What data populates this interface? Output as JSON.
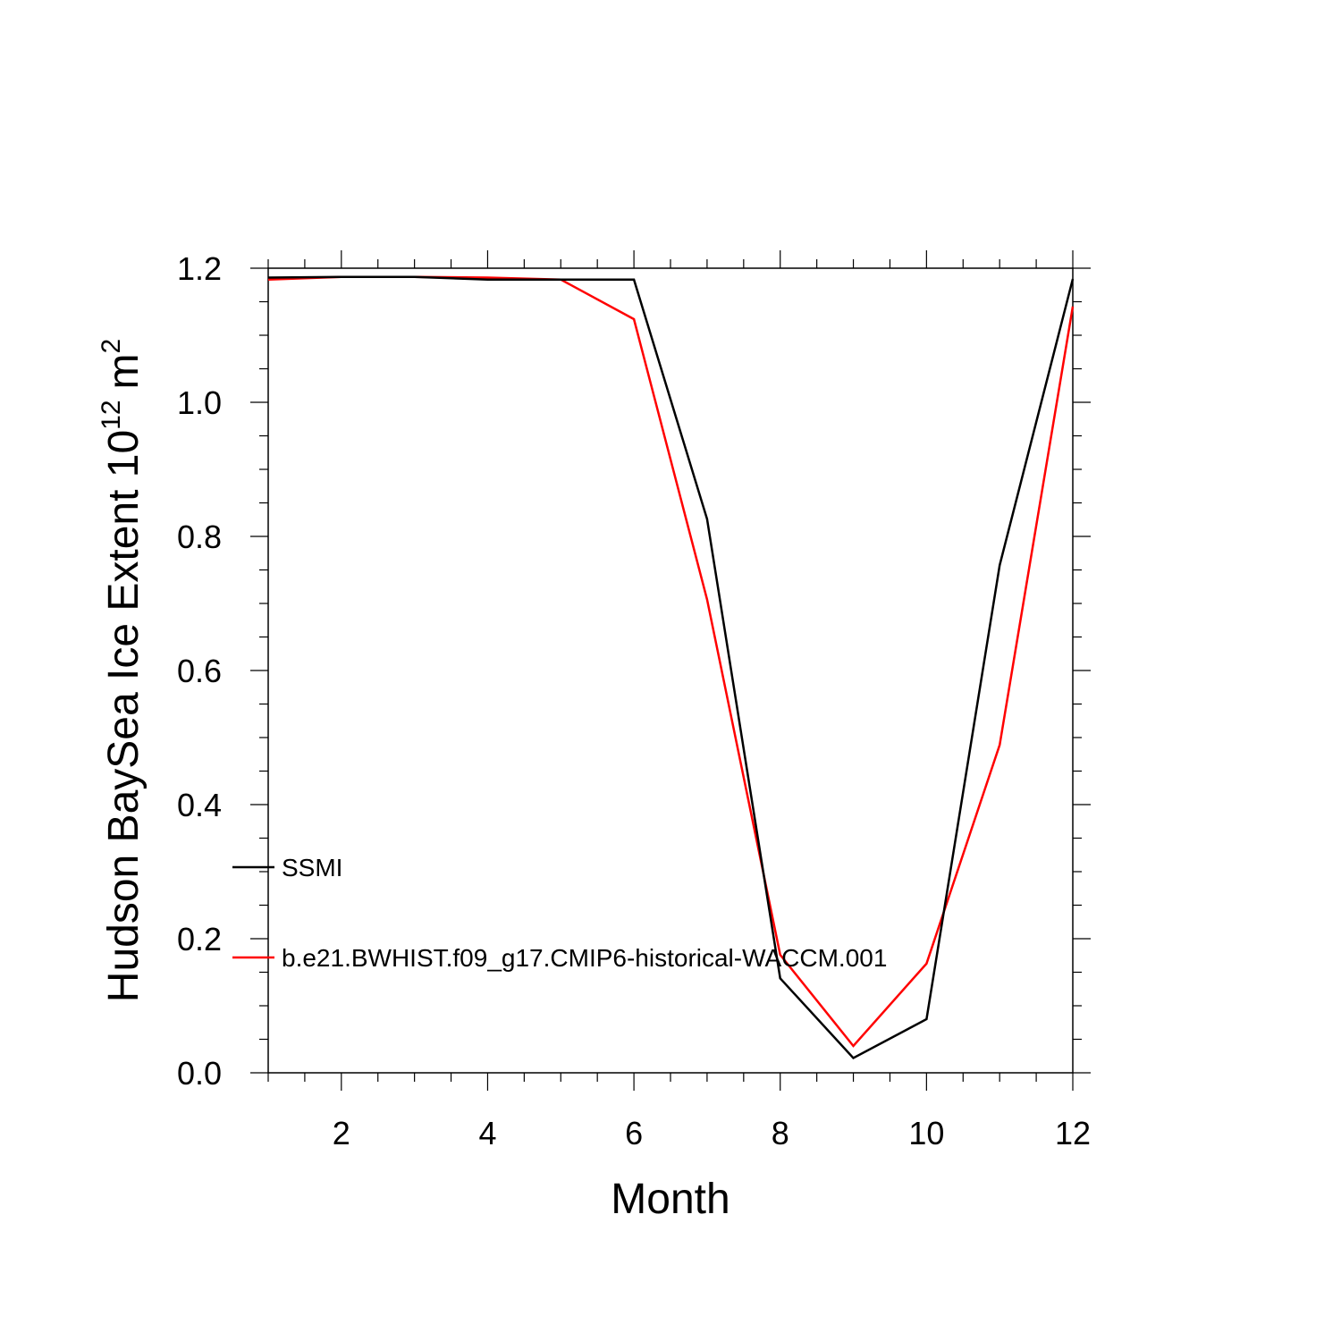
{
  "chart_data": {
    "type": "line",
    "title": "",
    "xlabel": "Month",
    "ylabel": {
      "text": "Hudson BaySea Ice Extent 10",
      "superscript": "12",
      "unit": "m",
      "unit_superscript": "2"
    },
    "xlim": [
      1,
      12
    ],
    "ylim": [
      0.0,
      1.2
    ],
    "x_major_ticks": [
      2,
      4,
      6,
      8,
      10,
      12
    ],
    "x_tick_labels": [
      "2",
      "4",
      "6",
      "8",
      "10",
      "12"
    ],
    "y_major_ticks": [
      0.0,
      0.2,
      0.4,
      0.6,
      0.8,
      1.0,
      1.2
    ],
    "y_tick_labels": [
      "0.0",
      "0.2",
      "0.4",
      "0.6",
      "0.8",
      "1.0",
      "1.2"
    ],
    "grid": false,
    "legend_position": "left, inside plot",
    "x": [
      1,
      2,
      3,
      4,
      5,
      6,
      7,
      8,
      9,
      10,
      11,
      12
    ],
    "series": [
      {
        "name": "SSMI",
        "color": "#000000",
        "values": [
          1.186,
          1.187,
          1.187,
          1.183,
          1.183,
          1.183,
          0.826,
          0.141,
          0.022,
          0.08,
          0.757,
          1.184
        ]
      },
      {
        "name": "b.e21.BWHIST.f09_g17.CMIP6-historical-WACCM.001",
        "color": "#ff0000",
        "values": [
          1.183,
          1.187,
          1.187,
          1.186,
          1.183,
          1.124,
          0.706,
          0.176,
          0.04,
          0.163,
          0.489,
          1.143
        ]
      }
    ]
  }
}
